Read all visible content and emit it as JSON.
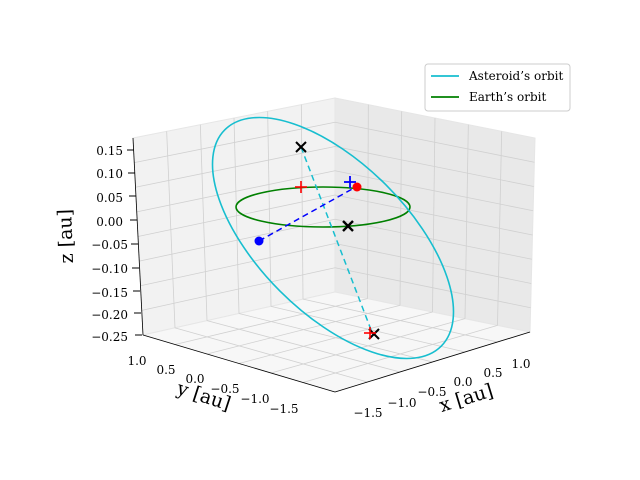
{
  "chart_data": {
    "type": "3d-orbit-plot",
    "legend": {
      "placement": "top-right",
      "entries": [
        {
          "label": "Asteroid’s orbit",
          "color": "#17becf"
        },
        {
          "label": "Earth’s orbit",
          "color": "#008000"
        }
      ]
    },
    "axes": {
      "x": {
        "label": "x [au]",
        "ticks": [
          "−1.5",
          "−1.0",
          "−0.5",
          "0.0",
          "0.5",
          "1.0"
        ],
        "range": [
          -1.6,
          1.2
        ]
      },
      "y": {
        "label": "y [au]",
        "ticks": [
          "1.0",
          "0.5",
          "0.0",
          "−0.5",
          "−1.0",
          "−1.5"
        ],
        "range": [
          1.2,
          -1.8
        ]
      },
      "z": {
        "label": "z [au]",
        "ticks": [
          "0.15",
          "0.10",
          "0.05",
          "0.00",
          "−0.05",
          "−0.10",
          "−0.15",
          "−0.20",
          "−0.25"
        ],
        "range": [
          0.16,
          -0.26
        ]
      },
      "grid": true
    },
    "series": [
      {
        "name": "Asteroid’s orbit",
        "kind": "ellipse",
        "color": "#17becf"
      },
      {
        "name": "Earth’s orbit",
        "kind": "circle",
        "color": "#008000",
        "radius": 1.0,
        "z": 0
      }
    ],
    "markers": [
      {
        "kind": "x",
        "color": "#000000",
        "note": "node"
      },
      {
        "kind": "x",
        "color": "#000000",
        "note": "sun"
      },
      {
        "kind": "x",
        "color": "#000000",
        "note": "node"
      },
      {
        "kind": "plus",
        "color": "#ff0000"
      },
      {
        "kind": "plus",
        "color": "#ff0000"
      },
      {
        "kind": "plus",
        "color": "#0000ff"
      },
      {
        "kind": "dot",
        "color": "#ff0000"
      },
      {
        "kind": "dot",
        "color": "#0000ff"
      }
    ],
    "connectors": [
      {
        "color": "#17becf",
        "style": "dashed",
        "note": "line of nodes"
      },
      {
        "color": "#0000ff",
        "style": "dashed"
      }
    ]
  }
}
